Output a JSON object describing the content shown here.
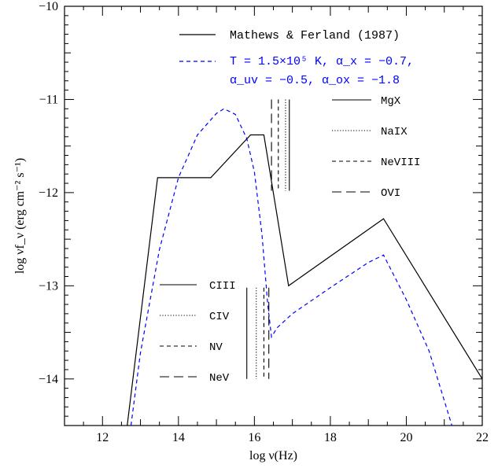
{
  "chart_data": {
    "type": "line",
    "xlabel": "log ν(Hz)",
    "ylabel": "log νf_ν (erg cm⁻² s⁻¹)",
    "xlim": [
      11,
      22
    ],
    "ylim": [
      -14.5,
      -10
    ],
    "x_ticks": [
      12,
      14,
      16,
      18,
      20,
      22
    ],
    "y_ticks": [
      -14,
      -13,
      -12,
      -11,
      -10
    ],
    "x_tick_labels": [
      "12",
      "14",
      "16",
      "18",
      "20",
      "22"
    ],
    "y_tick_labels": [
      "−14",
      "−13",
      "−12",
      "−11",
      "−10"
    ],
    "series": [
      {
        "name": "Mathews & Ferland (1987)",
        "style": "solid",
        "color": "#000000",
        "points": [
          [
            12.65,
            -14.5
          ],
          [
            13.45,
            -11.84
          ],
          [
            14.85,
            -11.84
          ],
          [
            15.9,
            -11.38
          ],
          [
            16.25,
            -11.38
          ],
          [
            16.9,
            -13.0
          ],
          [
            19.4,
            -12.28
          ],
          [
            22.0,
            -14.0
          ]
        ]
      },
      {
        "name": "T = 1.5×10⁵ K, α_x = −0.7, α_uv = −0.5, α_ox = −1.8",
        "style": "dashed",
        "color": "#0000ff",
        "points": [
          [
            12.75,
            -14.5
          ],
          [
            13.0,
            -13.72
          ],
          [
            13.5,
            -12.61
          ],
          [
            14.0,
            -11.84
          ],
          [
            14.5,
            -11.38
          ],
          [
            15.0,
            -11.15
          ],
          [
            15.2,
            -11.1
          ],
          [
            15.5,
            -11.16
          ],
          [
            15.8,
            -11.42
          ],
          [
            16.0,
            -11.78
          ],
          [
            16.2,
            -12.45
          ],
          [
            16.35,
            -13.2
          ],
          [
            16.45,
            -13.55
          ],
          [
            16.6,
            -13.45
          ],
          [
            17.0,
            -13.3
          ],
          [
            18.0,
            -13.02
          ],
          [
            19.0,
            -12.75
          ],
          [
            19.4,
            -12.67
          ],
          [
            20.0,
            -13.15
          ],
          [
            20.6,
            -13.7
          ],
          [
            21.2,
            -14.5
          ]
        ]
      }
    ],
    "legend": {
      "lines": [
        {
          "label": "Mathews & Ferland (1987)",
          "style": "solid",
          "color": "#000000"
        },
        {
          "label": "T = 1.5×10⁵ K, α_x = −0.7,",
          "style": "dashed",
          "color": "#0000ff"
        },
        {
          "label": "α_uv = −0.5, α_ox = −1.8",
          "style": "none",
          "color": "#0000ff"
        }
      ]
    },
    "ionization_markers_high": [
      {
        "ion": "MgX",
        "style": "solid",
        "x": 16.92,
        "y_range": [
          -11.0,
          -11.98
        ]
      },
      {
        "ion": "NaIX",
        "style": "dotted",
        "x": 16.82,
        "y_range": [
          -11.0,
          -11.98
        ]
      },
      {
        "ion": "NeVIII",
        "style": "dashed",
        "x": 16.63,
        "y_range": [
          -11.0,
          -11.98
        ]
      },
      {
        "ion": "OVI",
        "style": "longdash",
        "x": 16.45,
        "y_range": [
          -11.0,
          -11.98
        ]
      }
    ],
    "ionization_markers_low": [
      {
        "ion": "CIII",
        "style": "solid",
        "x": 15.8,
        "y_range": [
          -13.02,
          -14.0
        ]
      },
      {
        "ion": "CIV",
        "style": "dotted",
        "x": 16.05,
        "y_range": [
          -13.02,
          -14.0
        ]
      },
      {
        "ion": "NV",
        "style": "dashed",
        "x": 16.25,
        "y_range": [
          -13.02,
          -14.0
        ]
      },
      {
        "ion": "NeV",
        "style": "longdash",
        "x": 16.38,
        "y_range": [
          -13.02,
          -14.0
        ]
      }
    ],
    "grid": false
  }
}
